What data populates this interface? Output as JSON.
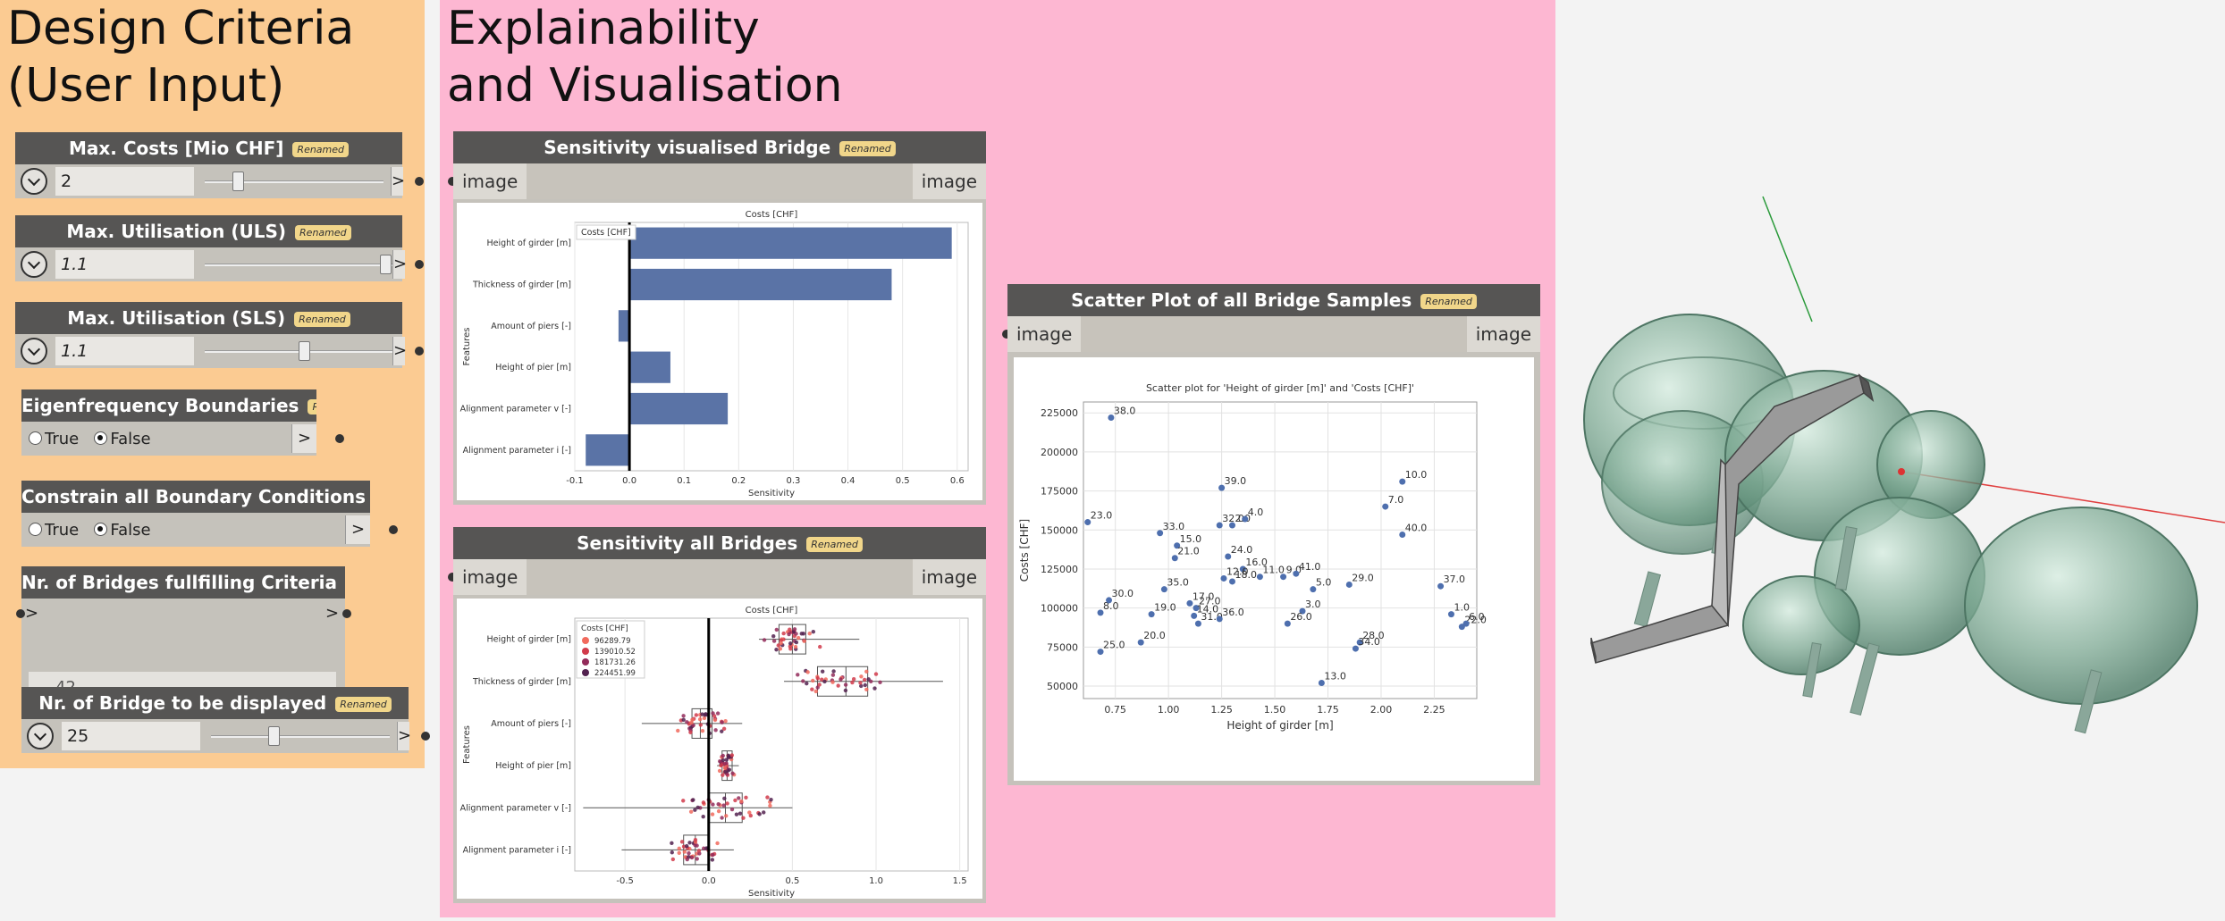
{
  "groups": {
    "design": {
      "title_line1": "Design Criteria",
      "title_line2": "(User Input)"
    },
    "explain": {
      "title_line1": "Explainability",
      "title_line2": "and Visualisation"
    }
  },
  "badge": "Renamed",
  "inputs": {
    "max_costs": {
      "label": "Max. Costs [Mio CHF]",
      "value": "2",
      "level": 0.25
    },
    "max_uls": {
      "label": "Max. Utilisation (ULS)",
      "value": "1.1",
      "level": 0.97
    },
    "max_sls": {
      "label": "Max. Utilisation (SLS)",
      "value": "1.1",
      "level": 0.55
    },
    "eigen": {
      "label": "Eigenfrequency Boundaries",
      "true_label": "True",
      "false_label": "False",
      "selected": "False"
    },
    "constrain": {
      "label": "Constrain all Boundary Conditions",
      "true_label": "True",
      "false_label": "False",
      "selected": "False"
    },
    "nr_bridges": {
      "label": "Nr. of Bridges fullfilling Criteria",
      "arrow_in": ">",
      "arrow_out": ">",
      "output": "42"
    },
    "nr_display": {
      "label": "Nr. of Bridge to be displayed",
      "value": "25",
      "level": 0.32
    }
  },
  "image_nodes": {
    "sens_bridge": {
      "title": "Sensitivity visualised Bridge",
      "in_label": "image",
      "out_label": "image"
    },
    "sens_all": {
      "title": "Sensitivity all Bridges",
      "in_label": "image",
      "out_label": "image"
    },
    "scatter": {
      "title": "Scatter Plot of all Bridge Samples",
      "in_label": "image",
      "out_label": "image"
    }
  },
  "chart_data": [
    {
      "type": "bar",
      "orientation": "horizontal",
      "title": "Costs [CHF]",
      "legend": "Costs [CHF]",
      "xlabel": "Sensitivity",
      "ylabel": "Features",
      "categories": [
        "Height of girder [m]",
        "Thickness of girder [m]",
        "Amount of piers [-]",
        "Height of pier [m]",
        "Alignment parameter v [-]",
        "Alignment parameter i [-]"
      ],
      "values": [
        0.59,
        0.48,
        -0.02,
        0.075,
        0.18,
        -0.08
      ],
      "xlim": [
        -0.1,
        0.62
      ],
      "xticks": [
        "-0.1",
        "0.0",
        "0.1",
        "0.2",
        "0.3",
        "0.4",
        "0.5",
        "0.6"
      ],
      "color": "#5a73a6"
    },
    {
      "type": "box",
      "orientation": "horizontal",
      "title": "Costs [CHF]",
      "xlabel": "Sensitivity",
      "ylabel": "Features",
      "legend_title": "Costs [CHF]",
      "legend_entries": [
        "96289.79",
        "139010.52",
        "181731.26",
        "224451.99"
      ],
      "legend_colors": [
        "#f16a5d",
        "#d13b4b",
        "#932b5a",
        "#52214f"
      ],
      "categories": [
        "Height of girder [m]",
        "Thickness of girder [m]",
        "Amount of piers [-]",
        "Height of pier [m]",
        "Alignment parameter v [-]",
        "Alignment parameter i [-]"
      ],
      "boxes": [
        [
          0.3,
          0.42,
          0.5,
          0.58,
          0.9
        ],
        [
          0.45,
          0.65,
          0.82,
          0.95,
          1.4
        ],
        [
          -0.4,
          -0.1,
          -0.05,
          0.02,
          0.2
        ],
        [
          0.05,
          0.08,
          0.11,
          0.14,
          0.18
        ],
        [
          -0.75,
          0.0,
          0.1,
          0.2,
          0.5
        ],
        [
          -0.52,
          -0.15,
          -0.08,
          0.0,
          0.15
        ]
      ],
      "xlim": [
        -0.8,
        1.55
      ],
      "xticks": [
        "-0.5",
        "0.0",
        "0.5",
        "1.0",
        "1.5"
      ]
    },
    {
      "type": "scatter",
      "title": "Scatter plot for 'Height of girder [m]' and 'Costs [CHF]'",
      "xlabel": "Height of girder [m]",
      "ylabel": "Costs [CHF]",
      "xlim": [
        0.6,
        2.45
      ],
      "ylim": [
        42000,
        232000
      ],
      "xticks": [
        "0.75",
        "1.00",
        "1.25",
        "1.50",
        "1.75",
        "2.00",
        "2.25"
      ],
      "yticks": [
        "50000",
        "75000",
        "100000",
        "125000",
        "150000",
        "175000",
        "200000",
        "225000"
      ],
      "points": [
        {
          "x": 0.73,
          "y": 222000,
          "label": "38.0"
        },
        {
          "x": 0.62,
          "y": 155000,
          "label": "23.0"
        },
        {
          "x": 0.68,
          "y": 97000,
          "label": "8.0"
        },
        {
          "x": 0.72,
          "y": 105000,
          "label": "30.0"
        },
        {
          "x": 0.68,
          "y": 72000,
          "label": "25.0"
        },
        {
          "x": 0.87,
          "y": 78000,
          "label": "20.0"
        },
        {
          "x": 0.92,
          "y": 96000,
          "label": "19.0"
        },
        {
          "x": 0.96,
          "y": 148000,
          "label": "33.0"
        },
        {
          "x": 1.04,
          "y": 140000,
          "label": "15.0"
        },
        {
          "x": 1.03,
          "y": 132000,
          "label": "21.0"
        },
        {
          "x": 0.98,
          "y": 112000,
          "label": "35.0"
        },
        {
          "x": 1.1,
          "y": 103000,
          "label": "17.0"
        },
        {
          "x": 1.13,
          "y": 100000,
          "label": "27.0"
        },
        {
          "x": 1.12,
          "y": 95000,
          "label": "14.0"
        },
        {
          "x": 1.14,
          "y": 90000,
          "label": "31.0"
        },
        {
          "x": 1.24,
          "y": 93000,
          "label": "36.0"
        },
        {
          "x": 1.25,
          "y": 177000,
          "label": "39.0"
        },
        {
          "x": 1.24,
          "y": 153000,
          "label": "32.0"
        },
        {
          "x": 1.3,
          "y": 153000,
          "label": "2.0"
        },
        {
          "x": 1.36,
          "y": 157000,
          "label": "4.0"
        },
        {
          "x": 1.28,
          "y": 133000,
          "label": "24.0"
        },
        {
          "x": 1.35,
          "y": 125000,
          "label": "16.0"
        },
        {
          "x": 1.26,
          "y": 119000,
          "label": "12.0"
        },
        {
          "x": 1.3,
          "y": 117000,
          "label": "18.0"
        },
        {
          "x": 1.43,
          "y": 120000,
          "label": "11.0"
        },
        {
          "x": 1.54,
          "y": 120000,
          "label": "9.0"
        },
        {
          "x": 1.6,
          "y": 122000,
          "label": "41.0"
        },
        {
          "x": 1.68,
          "y": 112000,
          "label": "5.0"
        },
        {
          "x": 1.63,
          "y": 98000,
          "label": "3.0"
        },
        {
          "x": 1.56,
          "y": 90000,
          "label": "26.0"
        },
        {
          "x": 1.85,
          "y": 115000,
          "label": "29.0"
        },
        {
          "x": 1.9,
          "y": 78000,
          "label": "28.0"
        },
        {
          "x": 1.88,
          "y": 74000,
          "label": "34.0"
        },
        {
          "x": 1.72,
          "y": 52000,
          "label": "13.0"
        },
        {
          "x": 2.02,
          "y": 165000,
          "label": "7.0"
        },
        {
          "x": 2.1,
          "y": 181000,
          "label": "10.0"
        },
        {
          "x": 2.1,
          "y": 147000,
          "label": "40.0"
        },
        {
          "x": 2.28,
          "y": 114000,
          "label": "37.0"
        },
        {
          "x": 2.33,
          "y": 96000,
          "label": "1.0"
        },
        {
          "x": 2.38,
          "y": 88000,
          "label": "22.0"
        },
        {
          "x": 2.4,
          "y": 90000,
          "label": "6.0"
        }
      ],
      "color": "#4e6fae"
    }
  ]
}
